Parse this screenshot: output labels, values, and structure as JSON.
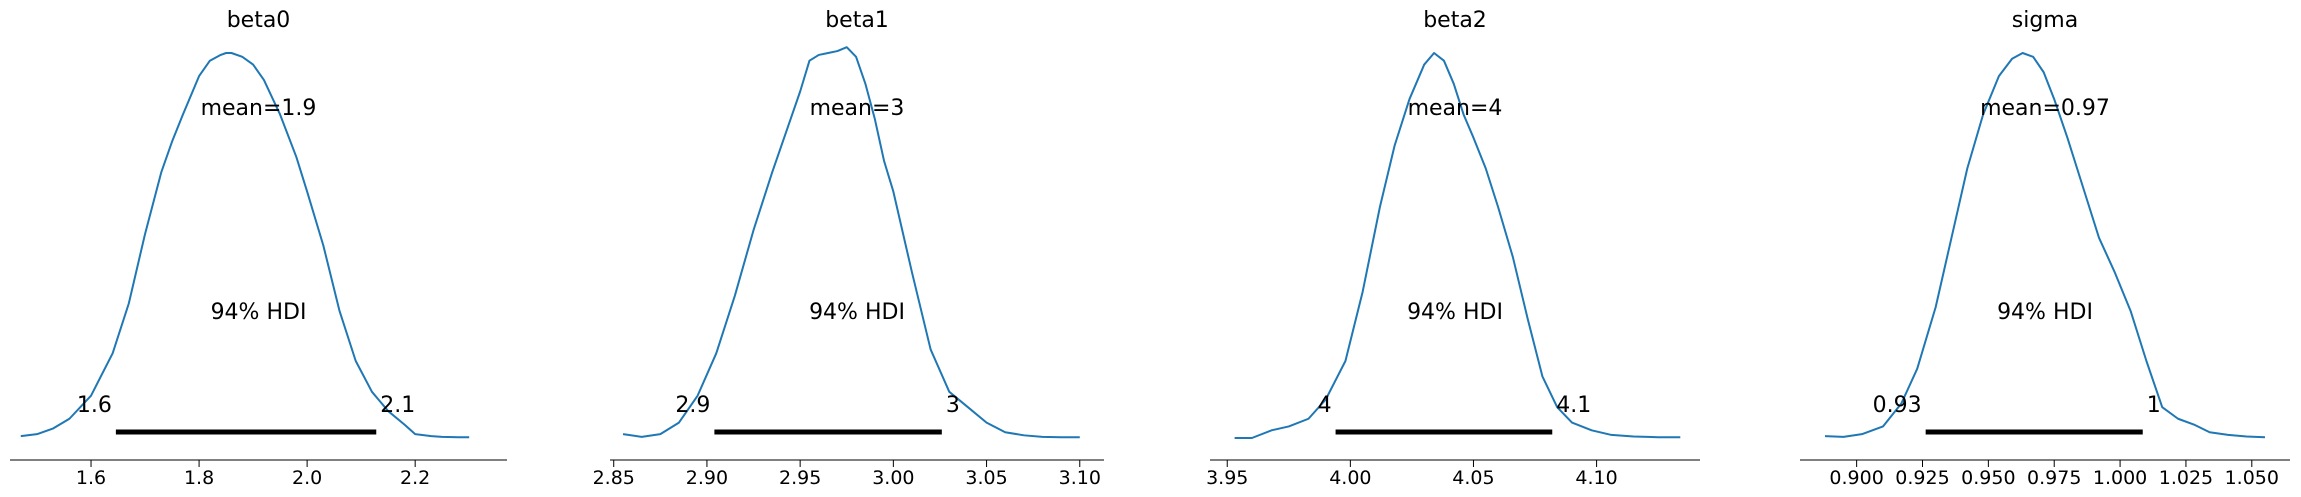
{
  "figure": {
    "kind": "posterior density plots"
  },
  "chart_data": [
    {
      "type": "line",
      "title": "beta0",
      "mean_label": "mean=1.9",
      "hdi_label": "94% HDI",
      "hdi_low_label": "1.6",
      "hdi_high_label": "2.1",
      "hdi": [
        1.646,
        2.128
      ],
      "xlim": [
        1.45,
        2.37
      ],
      "xticks": [
        1.6,
        1.8,
        2.0,
        2.2
      ],
      "xticklabels": [
        "1.6",
        "1.8",
        "2.0",
        "2.2"
      ],
      "grid": false,
      "density": {
        "x": [
          1.47,
          1.5,
          1.53,
          1.56,
          1.6,
          1.64,
          1.67,
          1.7,
          1.73,
          1.75,
          1.77,
          1.8,
          1.82,
          1.84,
          1.85,
          1.86,
          1.88,
          1.9,
          1.92,
          1.95,
          1.98,
          2.0,
          2.03,
          2.06,
          2.09,
          2.12,
          2.15,
          2.18,
          2.2,
          2.23,
          2.25,
          2.28,
          2.3
        ],
        "y": [
          0.005,
          0.01,
          0.025,
          0.05,
          0.11,
          0.22,
          0.35,
          0.53,
          0.69,
          0.77,
          0.84,
          0.94,
          0.98,
          0.995,
          1.0,
          1.0,
          0.99,
          0.97,
          0.93,
          0.84,
          0.73,
          0.64,
          0.5,
          0.33,
          0.2,
          0.12,
          0.07,
          0.035,
          0.01,
          0.005,
          0.003,
          0.002,
          0.002
        ]
      }
    },
    {
      "type": "line",
      "title": "beta1",
      "mean_label": "mean=3",
      "hdi_label": "94% HDI",
      "hdi_low_label": "2.9",
      "hdi_high_label": "3",
      "hdi": [
        2.904,
        3.026
      ],
      "xlim": [
        2.848,
        3.113
      ],
      "xticks": [
        2.85,
        2.9,
        2.95,
        3.0,
        3.05,
        3.1
      ],
      "xticklabels": [
        "2.85",
        "2.90",
        "2.95",
        "3.00",
        "3.05",
        "3.10"
      ],
      "grid": false,
      "density": {
        "x": [
          2.855,
          2.865,
          2.875,
          2.885,
          2.895,
          2.905,
          2.915,
          2.925,
          2.935,
          2.945,
          2.95,
          2.955,
          2.96,
          2.965,
          2.97,
          2.975,
          2.98,
          2.985,
          2.99,
          2.995,
          3.0,
          3.01,
          3.02,
          3.03,
          3.04,
          3.05,
          3.06,
          3.07,
          3.08,
          3.09,
          3.1
        ],
        "y": [
          0.01,
          0.003,
          0.01,
          0.04,
          0.11,
          0.22,
          0.37,
          0.54,
          0.69,
          0.83,
          0.9,
          0.98,
          0.995,
          1.0,
          1.005,
          1.015,
          0.99,
          0.92,
          0.83,
          0.72,
          0.64,
          0.43,
          0.23,
          0.12,
          0.08,
          0.04,
          0.015,
          0.007,
          0.003,
          0.002,
          0.002
        ]
      }
    },
    {
      "type": "line",
      "title": "beta2",
      "mean_label": "mean=4",
      "hdi_label": "94% HDI",
      "hdi_low_label": "4",
      "hdi_high_label": "4.1",
      "hdi": [
        3.994,
        4.082
      ],
      "xlim": [
        3.943,
        4.142
      ],
      "xticks": [
        3.95,
        4.0,
        4.05,
        4.1
      ],
      "xticklabels": [
        "3.95",
        "4.00",
        "4.05",
        "4.10"
      ],
      "grid": false,
      "density": {
        "x": [
          3.953,
          3.96,
          3.968,
          3.975,
          3.983,
          3.99,
          3.998,
          4.005,
          4.012,
          4.018,
          4.024,
          4.03,
          4.034,
          4.038,
          4.042,
          4.046,
          4.05,
          4.055,
          4.06,
          4.066,
          4.072,
          4.078,
          4.084,
          4.09,
          4.098,
          4.106,
          4.115,
          4.125,
          4.134
        ],
        "y": [
          0.0,
          0.0,
          0.02,
          0.03,
          0.05,
          0.1,
          0.2,
          0.38,
          0.6,
          0.76,
          0.88,
          0.97,
          1.0,
          0.98,
          0.92,
          0.84,
          0.78,
          0.7,
          0.6,
          0.47,
          0.31,
          0.16,
          0.08,
          0.04,
          0.02,
          0.008,
          0.004,
          0.002,
          0.002
        ]
      }
    },
    {
      "type": "line",
      "title": "sigma",
      "mean_label": "mean=0.97",
      "hdi_label": "94% HDI",
      "hdi_low_label": "0.93",
      "hdi_high_label": "1",
      "hdi": [
        0.9262,
        1.0086
      ],
      "xlim": [
        0.8785,
        1.0645
      ],
      "xticks": [
        0.9,
        0.925,
        0.95,
        0.975,
        1.0,
        1.025,
        1.05
      ],
      "xticklabels": [
        "0.900",
        "0.925",
        "0.950",
        "0.975",
        "1.000",
        "1.025",
        "1.050"
      ],
      "grid": false,
      "density": {
        "x": [
          0.888,
          0.895,
          0.902,
          0.91,
          0.917,
          0.923,
          0.93,
          0.936,
          0.942,
          0.948,
          0.954,
          0.959,
          0.963,
          0.967,
          0.971,
          0.975,
          0.98,
          0.986,
          0.992,
          0.998,
          1.004,
          1.01,
          1.016,
          1.022,
          1.028,
          1.034,
          1.041,
          1.048,
          1.055
        ],
        "y": [
          0.005,
          0.003,
          0.01,
          0.03,
          0.09,
          0.18,
          0.34,
          0.52,
          0.7,
          0.84,
          0.94,
          0.985,
          1.0,
          0.99,
          0.95,
          0.88,
          0.78,
          0.65,
          0.52,
          0.43,
          0.33,
          0.2,
          0.08,
          0.05,
          0.035,
          0.015,
          0.008,
          0.004,
          0.002
        ]
      }
    }
  ],
  "style": {
    "curve_color": "#1f77b4",
    "hdi_color": "#000000",
    "axis_color": "#000000",
    "background": "#ffffff"
  }
}
